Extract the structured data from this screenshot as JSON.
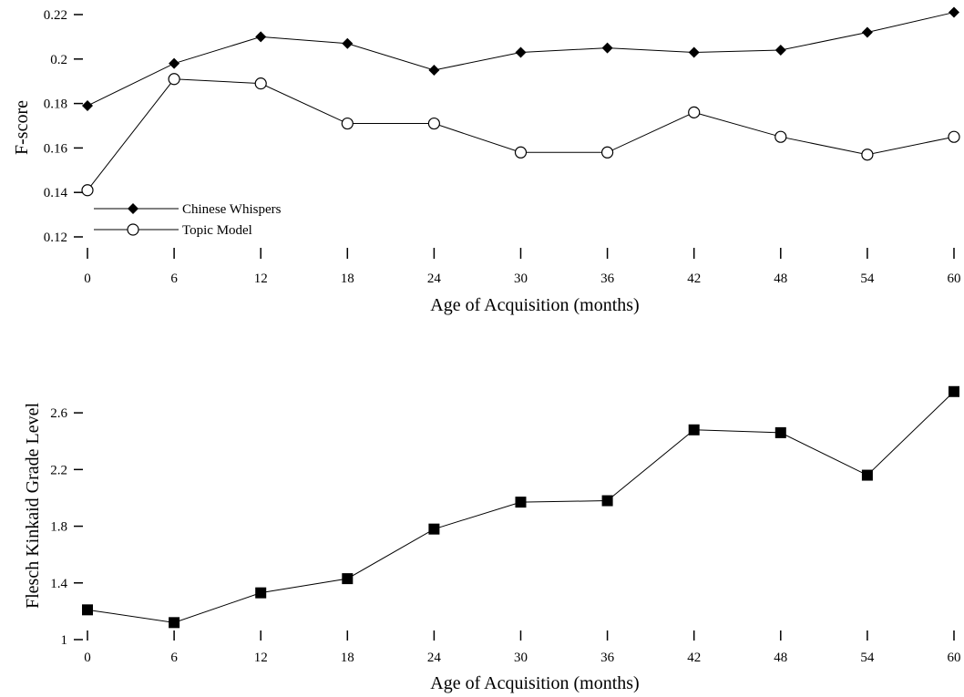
{
  "chart_data": [
    {
      "type": "line",
      "xlabel": "Age of Acquisition (months)",
      "ylabel": "F-score",
      "x": [
        0,
        6,
        12,
        18,
        24,
        30,
        36,
        42,
        48,
        54,
        60
      ],
      "x_ticks": [
        "0",
        "6",
        "12",
        "18",
        "24",
        "30",
        "36",
        "42",
        "48",
        "54",
        "60"
      ],
      "y_ticks": [
        "0.12",
        "0.14",
        "0.16",
        "0.18",
        "0.2",
        "0.22"
      ],
      "y_tick_values": [
        0.12,
        0.14,
        0.16,
        0.18,
        0.2,
        0.22
      ],
      "xlim": [
        0,
        60
      ],
      "ylim": [
        0.12,
        0.22
      ],
      "grid": false,
      "legend": "bottom-left",
      "series": [
        {
          "name": "Chinese Whispers",
          "marker": "diamond",
          "values": [
            0.179,
            0.198,
            0.21,
            0.207,
            0.195,
            0.203,
            0.205,
            0.203,
            0.204,
            0.212,
            0.221
          ]
        },
        {
          "name": "Topic Model",
          "marker": "circle-open",
          "values": [
            0.141,
            0.191,
            0.189,
            0.171,
            0.171,
            0.158,
            0.158,
            0.176,
            0.165,
            0.157,
            0.165
          ]
        }
      ]
    },
    {
      "type": "line",
      "xlabel": "Age of Acquisition (months)",
      "ylabel": "Flesch Kinkaid Grade Level",
      "x": [
        0,
        6,
        12,
        18,
        24,
        30,
        36,
        42,
        48,
        54,
        60
      ],
      "x_ticks": [
        "0",
        "6",
        "12",
        "18",
        "24",
        "30",
        "36",
        "42",
        "48",
        "54",
        "60"
      ],
      "y_ticks": [
        "1",
        "1.4",
        "1.8",
        "2.2",
        "2.6"
      ],
      "y_tick_values": [
        1,
        1.4,
        1.8,
        2.2,
        2.6
      ],
      "xlim": [
        0,
        60
      ],
      "ylim": [
        1,
        2.8
      ],
      "grid": false,
      "series": [
        {
          "marker": "square",
          "values": [
            1.21,
            1.12,
            1.33,
            1.43,
            1.78,
            1.97,
            1.98,
            2.48,
            2.46,
            2.16,
            2.75
          ]
        }
      ]
    }
  ]
}
